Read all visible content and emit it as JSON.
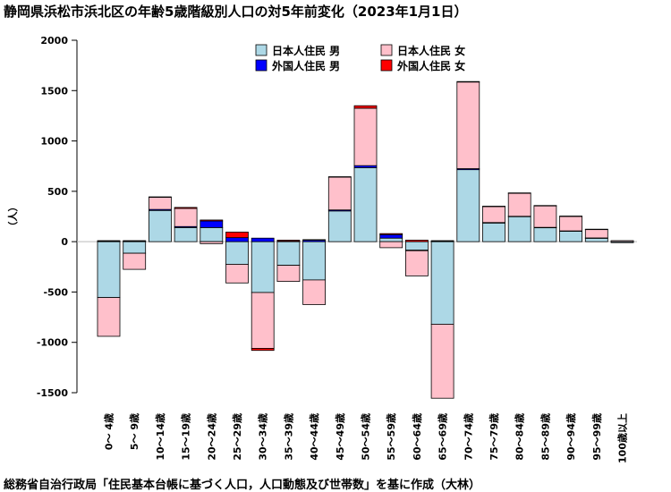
{
  "title": "静岡県浜松市浜北区の年齢5歳階級別人口の対5年前変化（2023年1月1日）",
  "caption": "総務省自治行政局「住民基本台帳に基づく人口，人口動態及び世帯数」を基に作成（大林）",
  "colors": {
    "jp_male": "#add8e6",
    "jp_female": "#ffc0cb",
    "fr_male": "#0000ff",
    "fr_female": "#ff0000"
  },
  "chart_data": {
    "type": "bar",
    "stacked": true,
    "ylabel": "（人）",
    "xlabel": "",
    "ylim": [
      -1500,
      2000
    ],
    "yticks": [
      -1500,
      -1000,
      -500,
      0,
      500,
      1000,
      1500,
      2000
    ],
    "grid": false,
    "legend_position": "top",
    "categories": [
      "0～ 4歳",
      "5～ 9歳",
      "10～14歳",
      "15～19歳",
      "20～24歳",
      "25～29歳",
      "30～34歳",
      "35～39歳",
      "40～44歳",
      "45～49歳",
      "50～54歳",
      "55～59歳",
      "60～64歳",
      "65～69歳",
      "70～74歳",
      "75～79歳",
      "80～84歳",
      "85～89歳",
      "90～94歳",
      "95～99歳",
      "100歳以上"
    ],
    "series": [
      {
        "name": "日本人住民 男",
        "color_key": "jp_male",
        "values": [
          -555,
          -115,
          310,
          140,
          140,
          -225,
          -505,
          -235,
          -380,
          305,
          735,
          35,
          -85,
          -820,
          715,
          185,
          250,
          140,
          105,
          35,
          -10
        ]
      },
      {
        "name": "外国人住民 男",
        "color_key": "fr_male",
        "values": [
          5,
          5,
          10,
          10,
          65,
          40,
          35,
          5,
          15,
          10,
          20,
          35,
          -5,
          5,
          10,
          5,
          2,
          2,
          2,
          2,
          0
        ]
      },
      {
        "name": "日本人住民 女",
        "color_key": "jp_female",
        "values": [
          -385,
          -160,
          120,
          180,
          -20,
          -185,
          -555,
          -160,
          -245,
          325,
          570,
          -60,
          -250,
          -735,
          860,
          160,
          230,
          215,
          145,
          85,
          10
        ]
      },
      {
        "name": "外国人住民 女",
        "color_key": "fr_female",
        "values": [
          5,
          5,
          5,
          10,
          10,
          55,
          -20,
          10,
          5,
          5,
          25,
          10,
          15,
          5,
          5,
          2,
          2,
          2,
          2,
          2,
          0
        ]
      }
    ]
  }
}
